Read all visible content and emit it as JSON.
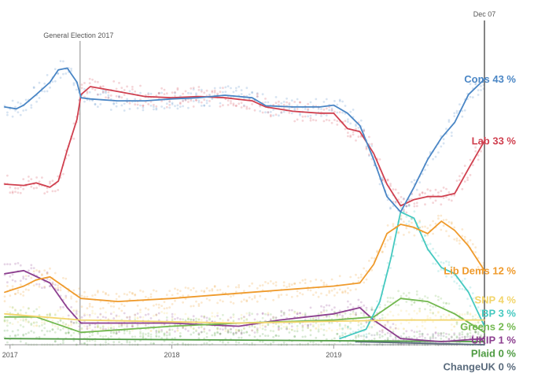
{
  "chart_data": {
    "type": "line",
    "x_axis": {
      "type": "date",
      "range": [
        "2016-12-20",
        "2019-12-07"
      ],
      "ticks": [
        {
          "date": "2017-01-01",
          "label": "2017"
        },
        {
          "date": "2018-01-01",
          "label": "2018"
        },
        {
          "date": "2019-01-01",
          "label": "2019"
        }
      ]
    },
    "y_axis": {
      "unit": "%",
      "range": [
        0,
        52
      ],
      "ticks_shown": false
    },
    "grid": false,
    "annotations": [
      {
        "date": "2017-06-08",
        "label": "General Election 2017"
      },
      {
        "date": "2019-12-07",
        "label": "Dec 07"
      }
    ],
    "series": [
      {
        "name": "Cons",
        "value_label": "43 %",
        "color": "#4a86c5",
        "points": [
          [
            "2016-12-20",
            38.5
          ],
          [
            "2017-01-15",
            38.2
          ],
          [
            "2017-02-01",
            38.8
          ],
          [
            "2017-03-01",
            40.5
          ],
          [
            "2017-04-01",
            42.5
          ],
          [
            "2017-04-20",
            44.5
          ],
          [
            "2017-05-10",
            44.8
          ],
          [
            "2017-06-01",
            42.5
          ],
          [
            "2017-06-10",
            40.0
          ],
          [
            "2017-07-01",
            39.8
          ],
          [
            "2017-09-01",
            39.5
          ],
          [
            "2017-11-01",
            39.5
          ],
          [
            "2018-01-01",
            39.8
          ],
          [
            "2018-03-01",
            40.0
          ],
          [
            "2018-05-01",
            40.4
          ],
          [
            "2018-07-01",
            40.0
          ],
          [
            "2018-08-01",
            38.7
          ],
          [
            "2018-10-01",
            38.5
          ],
          [
            "2018-12-01",
            38.5
          ],
          [
            "2019-01-01",
            38.8
          ],
          [
            "2019-02-01",
            37.5
          ],
          [
            "2019-03-01",
            35.5
          ],
          [
            "2019-04-01",
            30.0
          ],
          [
            "2019-05-01",
            24.0
          ],
          [
            "2019-06-01",
            21.5
          ],
          [
            "2019-07-01",
            25.5
          ],
          [
            "2019-08-01",
            30.0
          ],
          [
            "2019-09-01",
            33.5
          ],
          [
            "2019-10-01",
            36.0
          ],
          [
            "2019-11-01",
            40.5
          ],
          [
            "2019-12-07",
            43.0
          ]
        ]
      },
      {
        "name": "Lab",
        "value_label": "33 %",
        "color": "#d0404f",
        "points": [
          [
            "2016-12-20",
            26.0
          ],
          [
            "2017-02-01",
            25.8
          ],
          [
            "2017-03-01",
            26.2
          ],
          [
            "2017-04-01",
            25.5
          ],
          [
            "2017-04-20",
            26.5
          ],
          [
            "2017-05-10",
            31.5
          ],
          [
            "2017-06-01",
            36.5
          ],
          [
            "2017-06-10",
            40.5
          ],
          [
            "2017-07-01",
            41.8
          ],
          [
            "2017-09-01",
            41.0
          ],
          [
            "2017-11-01",
            40.2
          ],
          [
            "2018-01-01",
            40.0
          ],
          [
            "2018-03-01",
            40.2
          ],
          [
            "2018-05-01",
            40.0
          ],
          [
            "2018-07-01",
            39.5
          ],
          [
            "2018-08-01",
            38.5
          ],
          [
            "2018-10-01",
            37.8
          ],
          [
            "2018-12-01",
            37.5
          ],
          [
            "2019-01-01",
            37.5
          ],
          [
            "2019-02-01",
            35.0
          ],
          [
            "2019-03-01",
            34.5
          ],
          [
            "2019-04-01",
            31.0
          ],
          [
            "2019-05-01",
            26.0
          ],
          [
            "2019-06-01",
            22.5
          ],
          [
            "2019-07-01",
            23.5
          ],
          [
            "2019-08-01",
            24.0
          ],
          [
            "2019-09-01",
            24.0
          ],
          [
            "2019-10-01",
            24.5
          ],
          [
            "2019-11-01",
            28.5
          ],
          [
            "2019-12-07",
            33.0
          ]
        ]
      },
      {
        "name": "Lib Dems",
        "value_label": "12 %",
        "color": "#ef9a2b",
        "points": [
          [
            "2016-12-20",
            8.5
          ],
          [
            "2017-02-01",
            9.5
          ],
          [
            "2017-03-01",
            10.5
          ],
          [
            "2017-04-01",
            11.0
          ],
          [
            "2017-05-01",
            9.5
          ],
          [
            "2017-06-10",
            7.5
          ],
          [
            "2017-09-01",
            7.0
          ],
          [
            "2018-01-01",
            7.5
          ],
          [
            "2018-04-01",
            8.0
          ],
          [
            "2018-07-01",
            8.5
          ],
          [
            "2018-10-01",
            9.0
          ],
          [
            "2019-01-01",
            9.5
          ],
          [
            "2019-03-01",
            10.0
          ],
          [
            "2019-04-01",
            13.0
          ],
          [
            "2019-05-01",
            18.0
          ],
          [
            "2019-06-01",
            19.5
          ],
          [
            "2019-07-01",
            19.0
          ],
          [
            "2019-08-01",
            18.0
          ],
          [
            "2019-09-01",
            20.0
          ],
          [
            "2019-10-01",
            18.5
          ],
          [
            "2019-11-01",
            16.0
          ],
          [
            "2019-12-07",
            12.0
          ]
        ]
      },
      {
        "name": "SNP",
        "value_label": "4 %",
        "color": "#f2d56b",
        "points": [
          [
            "2016-12-20",
            5.0
          ],
          [
            "2017-06-10",
            4.0
          ],
          [
            "2018-06-01",
            3.5
          ],
          [
            "2019-06-01",
            4.0
          ],
          [
            "2019-12-07",
            4.0
          ]
        ]
      },
      {
        "name": "BP",
        "value_label": "3 %",
        "color": "#45c9c0",
        "points": [
          [
            "2019-01-15",
            1.0
          ],
          [
            "2019-03-15",
            2.5
          ],
          [
            "2019-04-15",
            7.0
          ],
          [
            "2019-05-10",
            14.0
          ],
          [
            "2019-06-01",
            21.5
          ],
          [
            "2019-07-01",
            20.5
          ],
          [
            "2019-08-01",
            15.5
          ],
          [
            "2019-09-01",
            12.5
          ],
          [
            "2019-10-01",
            11.5
          ],
          [
            "2019-11-01",
            8.5
          ],
          [
            "2019-12-07",
            3.0
          ]
        ]
      },
      {
        "name": "Greens",
        "value_label": "2 %",
        "color": "#72b84f",
        "points": [
          [
            "2016-12-20",
            4.5
          ],
          [
            "2017-03-01",
            4.5
          ],
          [
            "2017-06-10",
            2.0
          ],
          [
            "2018-01-01",
            3.0
          ],
          [
            "2018-06-01",
            3.5
          ],
          [
            "2019-01-01",
            4.0
          ],
          [
            "2019-04-01",
            4.5
          ],
          [
            "2019-06-01",
            7.5
          ],
          [
            "2019-08-01",
            7.0
          ],
          [
            "2019-10-01",
            5.0
          ],
          [
            "2019-12-07",
            2.0
          ]
        ]
      },
      {
        "name": "UKIP",
        "value_label": "1 %",
        "color": "#8c3f8f",
        "points": [
          [
            "2016-12-20",
            11.5
          ],
          [
            "2017-02-01",
            12.0
          ],
          [
            "2017-04-01",
            10.0
          ],
          [
            "2017-05-10",
            6.0
          ],
          [
            "2017-06-10",
            3.5
          ],
          [
            "2017-09-01",
            3.5
          ],
          [
            "2018-01-01",
            3.5
          ],
          [
            "2018-06-01",
            3.0
          ],
          [
            "2018-09-01",
            4.0
          ],
          [
            "2019-01-01",
            5.0
          ],
          [
            "2019-03-01",
            6.0
          ],
          [
            "2019-04-01",
            4.0
          ],
          [
            "2019-06-01",
            1.0
          ],
          [
            "2019-09-01",
            0.5
          ],
          [
            "2019-12-07",
            1.0
          ]
        ]
      },
      {
        "name": "Plaid",
        "value_label": "0 %",
        "color": "#4e9b42",
        "points": [
          [
            "2016-12-20",
            1.0
          ],
          [
            "2019-12-07",
            0.5
          ]
        ]
      },
      {
        "name": "ChangeUK",
        "value_label": "0 %",
        "color": "#5a6b7d",
        "points": [
          [
            "2019-02-20",
            0.5
          ],
          [
            "2019-12-07",
            0.0
          ]
        ]
      }
    ]
  }
}
